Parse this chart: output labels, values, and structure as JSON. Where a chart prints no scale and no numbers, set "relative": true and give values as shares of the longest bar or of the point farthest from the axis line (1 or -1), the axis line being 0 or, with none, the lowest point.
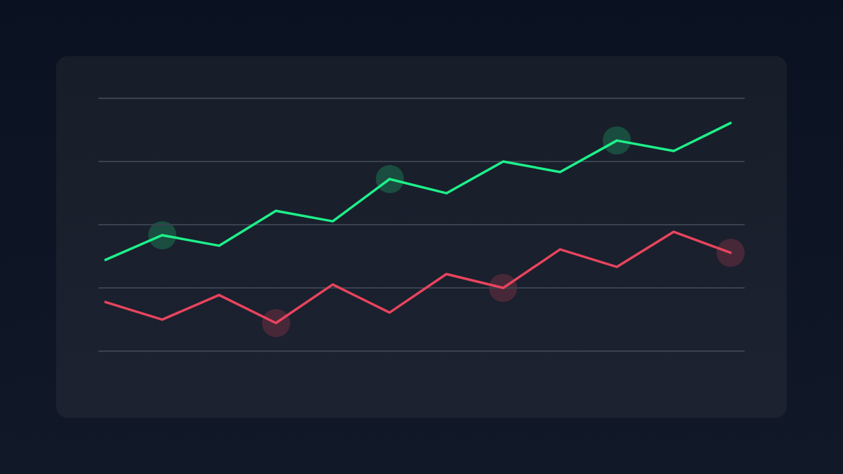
{
  "chart_data": {
    "type": "line",
    "relative": true,
    "grid": "y",
    "legend": false,
    "marker": "none",
    "line_style": "solid",
    "categories": [
      null,
      null,
      null,
      null,
      null,
      null,
      null,
      null,
      null,
      null,
      null,
      null
    ],
    "series": [
      {
        "color": "#1ef08a",
        "values": [
          0.4,
          0.508,
          0.462,
          0.615,
          0.569,
          0.754,
          0.692,
          0.831,
          0.785,
          0.923,
          0.877,
          1
        ]
      },
      {
        "color": "#e8445e",
        "values": [
          0.215,
          0.138,
          0.246,
          0.123,
          0.292,
          0.169,
          0.338,
          0.277,
          0.446,
          0.369,
          0.523,
          0.431
        ]
      }
    ]
  }
}
